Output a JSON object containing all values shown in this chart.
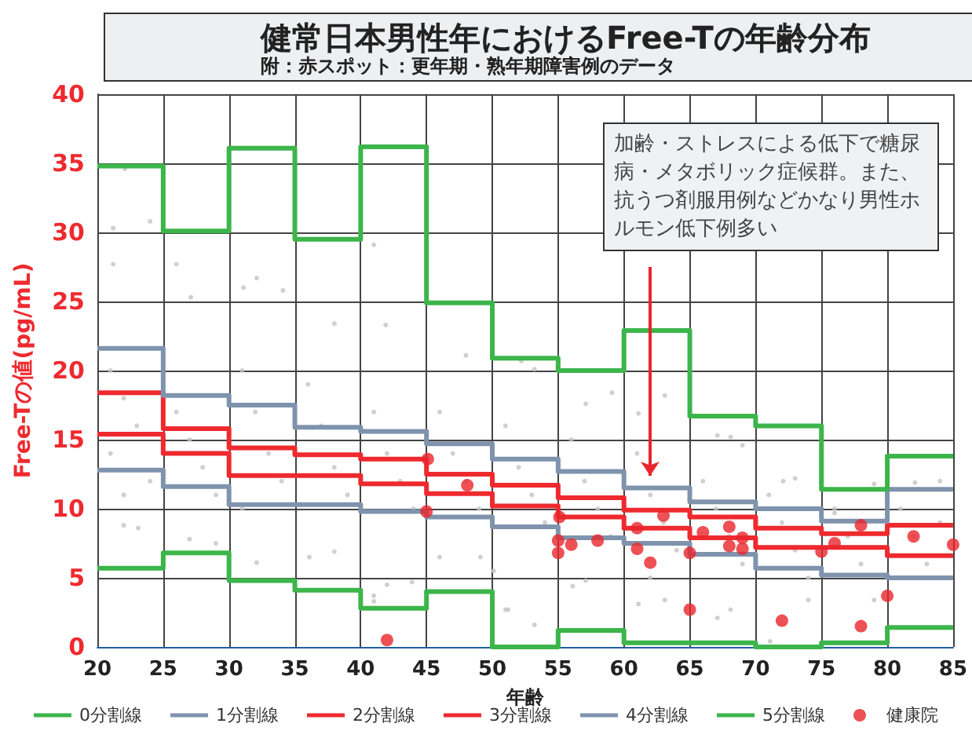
{
  "chart_data": {
    "type": "step",
    "title": "健常日本男性年におけるFree-Tの年齢分布",
    "subtitle": "附：赤スポット：更年期・熟年期障害例のデータ",
    "xlabel": "年齢",
    "ylabel": "Free-Tの値(pg/mL)",
    "xlim": [
      20,
      85
    ],
    "xticks": [
      20,
      25,
      30,
      35,
      40,
      45,
      50,
      55,
      60,
      65,
      70,
      75,
      80,
      85
    ],
    "ylim": [
      0,
      40
    ],
    "yticks": [
      0,
      5,
      10,
      15,
      20,
      25,
      30,
      35,
      40
    ],
    "grid": true,
    "legend": "bottom",
    "annotations": [
      "加齢・ストレスによる低下で糖尿病・メタボリック症候群。また、抗うつ剤服用例などかなり男性ホルモン低下例多い"
    ],
    "series": [
      {
        "type": "scatter",
        "color": "#c4c4c4",
        "x": [
          22.1,
          21.2,
          24.0,
          21.2,
          26.0,
          32.1,
          34.1,
          41.0,
          31.1,
          27.1,
          38.0,
          41.9,
          48.0,
          22.0,
          23.1,
          27.0,
          29.0,
          32.1,
          36.1,
          38.0,
          41.0,
          41.0,
          42.0,
          43.9,
          46.0,
          49.1,
          50.1,
          51.0,
          52.2,
          53.2,
          57.1,
          59.1,
          63.1,
          61.1,
          67.1,
          68.1,
          69.0,
          72.1,
          73.0,
          76.0,
          79.0,
          82.1,
          84.0,
          51.2,
          53.2,
          56.1,
          57.1,
          61.1,
          62.0,
          63.1,
          68.1,
          67.1,
          71.1,
          74.0,
          79.0,
          80.0,
          21,
          22,
          23,
          21,
          24,
          22,
          26,
          27,
          28,
          29,
          31,
          32,
          33,
          34,
          31,
          36,
          37,
          38,
          39,
          41,
          42,
          43,
          44,
          46,
          47,
          48,
          49,
          51,
          52,
          53,
          54,
          56,
          57,
          58,
          59,
          61,
          62,
          63,
          64,
          66,
          67,
          68,
          69,
          71,
          72,
          73,
          74,
          76,
          77,
          78,
          81,
          82,
          83,
          84
        ],
        "values": [
          34.6,
          30.3,
          30.8,
          27.7,
          27.7,
          26.7,
          25.8,
          29.1,
          26.0,
          25.3,
          23.4,
          23.3,
          21.1,
          8.8,
          8.6,
          7.8,
          7.5,
          6.1,
          6.5,
          6.9,
          3.7,
          3.3,
          4.5,
          4.7,
          6.5,
          6.5,
          5.5,
          2.7,
          20.7,
          20.1,
          17.6,
          18.4,
          18.2,
          16.9,
          15.3,
          15.2,
          14.6,
          12.0,
          12.2,
          9.7,
          11.8,
          11.9,
          12.0,
          2.7,
          1.6,
          4.4,
          4.8,
          3.1,
          5.0,
          3.4,
          2.7,
          2.1,
          0.4,
          3.4,
          3.4,
          5.0,
          20,
          18,
          16,
          14,
          12,
          11,
          17,
          15,
          13,
          11,
          20,
          17,
          14,
          12,
          10,
          19,
          16,
          13,
          11,
          17,
          14,
          12,
          10,
          17,
          14,
          12,
          10,
          16,
          13,
          11,
          9,
          15,
          12,
          10,
          8,
          14,
          11,
          9,
          7,
          12,
          10,
          8,
          6,
          11,
          9,
          7,
          5,
          10,
          8,
          6,
          10,
          8,
          6,
          9
        ]
      },
      {
        "name": "0分割線",
        "color": "#3cb54a",
        "x": [
          20,
          25,
          30,
          35,
          40,
          45,
          50,
          55,
          60,
          65,
          70,
          75,
          80,
          85
        ],
        "values": [
          5.7,
          6.8,
          4.8,
          4.1,
          2.8,
          4.0,
          0,
          1.2,
          0.3,
          0.3,
          0,
          0.3,
          1.4,
          1.4
        ]
      },
      {
        "name": "1分割線",
        "color": "#7f93ad",
        "x": [
          20,
          25,
          30,
          35,
          40,
          45,
          50,
          55,
          60,
          65,
          70,
          75,
          80,
          85
        ],
        "values": [
          12.8,
          11.6,
          10.3,
          10.3,
          9.8,
          9.4,
          8.7,
          7.9,
          7.5,
          6.7,
          5.7,
          5.2,
          5.0,
          5.0
        ]
      },
      {
        "name": "2分割線",
        "color": "#ee2a2f",
        "x": [
          20,
          25,
          30,
          35,
          40,
          45,
          50,
          55,
          60,
          65,
          70,
          75,
          80,
          85
        ],
        "values": [
          15.4,
          14.0,
          12.4,
          12.4,
          11.8,
          11.1,
          10.2,
          9.4,
          8.6,
          7.9,
          7.2,
          7.2,
          6.6,
          6.6
        ]
      },
      {
        "name": "3分割線",
        "color": "#ee2a2f",
        "x": [
          20,
          25,
          30,
          35,
          40,
          45,
          50,
          55,
          60,
          65,
          70,
          75,
          80,
          85
        ],
        "values": [
          18.4,
          15.8,
          14.4,
          13.9,
          13.6,
          12.5,
          11.7,
          10.8,
          9.9,
          9.4,
          8.6,
          8.2,
          8.8,
          8.8
        ]
      },
      {
        "name": "4分割線",
        "color": "#7f93ad",
        "x": [
          20,
          25,
          30,
          35,
          40,
          45,
          50,
          55,
          60,
          65,
          70,
          75,
          80,
          85
        ],
        "values": [
          21.6,
          18.2,
          17.5,
          15.9,
          15.6,
          14.7,
          13.6,
          12.7,
          11.5,
          10.5,
          10.0,
          9.1,
          11.4,
          11.4
        ]
      },
      {
        "name": "5分割線",
        "color": "#3cb54a",
        "x": [
          20,
          25,
          30,
          35,
          40,
          45,
          50,
          55,
          60,
          65,
          70,
          75,
          80,
          85
        ],
        "values": [
          34.8,
          30.1,
          36.1,
          29.5,
          36.2,
          24.9,
          20.9,
          20.0,
          22.9,
          16.7,
          16.0,
          11.4,
          13.8,
          13.8
        ]
      },
      {
        "name": "健康院",
        "type": "scatter",
        "color": "#e8262c",
        "x": [
          42.0,
          45.1,
          45.0,
          48.1,
          55.1,
          55.0,
          55.0,
          56.0,
          58.0,
          61.0,
          61.0,
          62.0,
          63.0,
          65.0,
          65.0,
          66.0,
          68.0,
          68.0,
          69.0,
          69.0,
          72.0,
          75.0,
          76.0,
          78.0,
          78.0,
          80.0,
          82.0,
          85.0
        ],
        "values": [
          0.5,
          13.6,
          9.8,
          11.7,
          9.4,
          7.7,
          6.8,
          7.4,
          7.7,
          8.6,
          7.1,
          6.1,
          9.5,
          6.8,
          2.7,
          8.3,
          8.7,
          7.3,
          7.9,
          7.1,
          1.9,
          6.9,
          7.5,
          8.8,
          1.5,
          3.7,
          8.0,
          7.4
        ]
      }
    ]
  }
}
